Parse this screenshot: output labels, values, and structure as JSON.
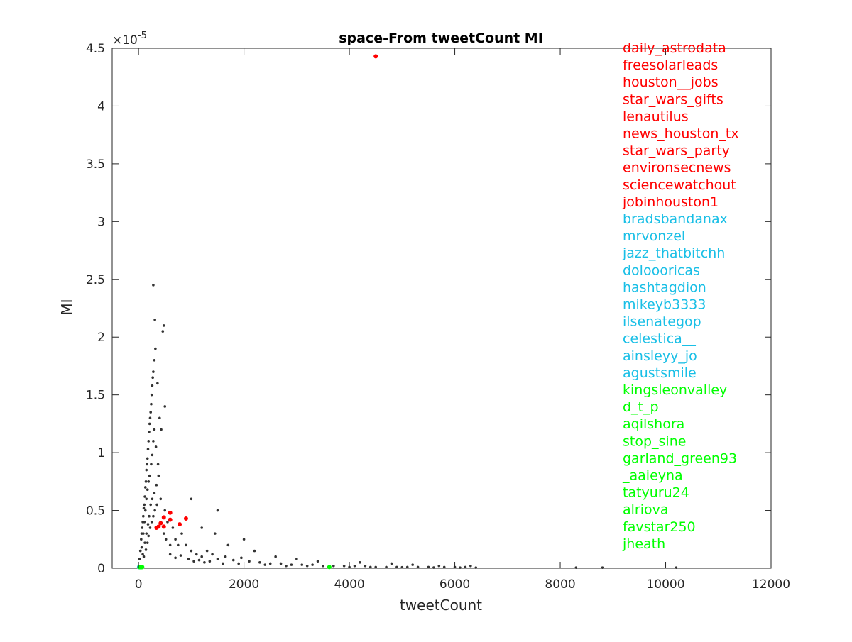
{
  "chart_data": {
    "type": "scatter",
    "title": "space-From tweetCount MI",
    "xlabel": "tweetCount",
    "ylabel": "MI",
    "xlim": [
      -500,
      12000
    ],
    "ylim": [
      0,
      4.5e-05
    ],
    "y_exponent": "×10",
    "y_exponent_power": "-5",
    "x_ticks": [
      0,
      2000,
      4000,
      6000,
      8000,
      10000,
      12000
    ],
    "x_tick_labels": [
      "0",
      "2000",
      "4000",
      "6000",
      "8000",
      "10000",
      "12000"
    ],
    "y_ticks": [
      0,
      5e-06,
      1e-05,
      1.5e-05,
      2e-05,
      2.5e-05,
      3e-05,
      3.5e-05,
      4e-05,
      4.5e-05
    ],
    "y_tick_labels": [
      "0",
      "0.5",
      "1",
      "1.5",
      "2",
      "2.5",
      "3",
      "3.5",
      "4",
      "4.5"
    ],
    "grid": false,
    "legend_placement": "top-right",
    "colors": {
      "red": "#ff0000",
      "blue": "#19bfe6",
      "green": "#00ff00",
      "gray": "#333333"
    },
    "series": [
      {
        "color": "#333333",
        "points": [
          [
            20,
            8e-07
          ],
          [
            35,
            1.5e-06
          ],
          [
            50,
            2.5e-06
          ],
          [
            60,
            3e-06
          ],
          [
            70,
            3.5e-06
          ],
          [
            80,
            4e-06
          ],
          [
            90,
            4.5e-06
          ],
          [
            100,
            5.2e-06
          ],
          [
            110,
            5.5e-06
          ],
          [
            120,
            6.2e-06
          ],
          [
            130,
            7e-06
          ],
          [
            140,
            7.5e-06
          ],
          [
            150,
            8.5e-06
          ],
          [
            160,
            9e-06
          ],
          [
            170,
            9.5e-06
          ],
          [
            180,
            1.03e-05
          ],
          [
            190,
            1.1e-05
          ],
          [
            200,
            1.18e-05
          ],
          [
            210,
            1.25e-05
          ],
          [
            220,
            1.3e-05
          ],
          [
            230,
            1.35e-05
          ],
          [
            240,
            1.42e-05
          ],
          [
            250,
            1.5e-05
          ],
          [
            260,
            1.58e-05
          ],
          [
            270,
            1.65e-05
          ],
          [
            280,
            1.7e-05
          ],
          [
            300,
            1.8e-05
          ],
          [
            320,
            1.9e-05
          ],
          [
            60,
            1.8e-06
          ],
          [
            90,
            3e-06
          ],
          [
            110,
            4e-06
          ],
          [
            130,
            5e-06
          ],
          [
            150,
            6e-06
          ],
          [
            170,
            6.8e-06
          ],
          [
            190,
            7.5e-06
          ],
          [
            210,
            8e-06
          ],
          [
            240,
            9e-06
          ],
          [
            260,
            9.8e-06
          ],
          [
            280,
            1.1e-05
          ],
          [
            300,
            1.2e-05
          ],
          [
            80,
            1.2e-06
          ],
          [
            120,
            2.2e-06
          ],
          [
            150,
            3e-06
          ],
          [
            180,
            3.8e-06
          ],
          [
            200,
            4.5e-06
          ],
          [
            230,
            5.5e-06
          ],
          [
            260,
            6e-06
          ],
          [
            300,
            6.5e-06
          ],
          [
            340,
            7.2e-06
          ],
          [
            380,
            8e-06
          ],
          [
            100,
            1e-06
          ],
          [
            140,
            1.6e-06
          ],
          [
            170,
            2.2e-06
          ],
          [
            190,
            2.8e-06
          ],
          [
            220,
            3.5e-06
          ],
          [
            250,
            4e-06
          ],
          [
            280,
            4.5e-06
          ],
          [
            310,
            5e-06
          ],
          [
            350,
            5.5e-06
          ],
          [
            420,
            6e-06
          ],
          [
            280,
            2.45e-05
          ],
          [
            310,
            2.15e-05
          ],
          [
            360,
            1.6e-05
          ],
          [
            400,
            1.3e-05
          ],
          [
            460,
            2.05e-05
          ],
          [
            480,
            2.1e-05
          ],
          [
            500,
            1.4e-05
          ],
          [
            430,
            1.2e-05
          ],
          [
            330,
            1.05e-05
          ],
          [
            370,
            9e-06
          ],
          [
            500,
            5e-06
          ],
          [
            550,
            4e-06
          ],
          [
            480,
            3e-06
          ],
          [
            520,
            2.5e-06
          ],
          [
            600,
            2e-06
          ],
          [
            650,
            3.5e-06
          ],
          [
            700,
            2.5e-06
          ],
          [
            750,
            2e-06
          ],
          [
            820,
            3e-06
          ],
          [
            900,
            2e-06
          ],
          [
            1000,
            1.5e-06
          ],
          [
            1100,
            1.2e-06
          ],
          [
            1200,
            1e-06
          ],
          [
            1300,
            1.5e-06
          ],
          [
            1400,
            1.2e-06
          ],
          [
            1500,
            8e-07
          ],
          [
            1650,
            1e-06
          ],
          [
            1800,
            7e-07
          ],
          [
            1950,
            9e-07
          ],
          [
            2100,
            6e-07
          ],
          [
            2300,
            5e-07
          ],
          [
            2500,
            4e-07
          ],
          [
            2700,
            4e-07
          ],
          [
            2900,
            3e-07
          ],
          [
            3100,
            3e-07
          ],
          [
            3300,
            3e-07
          ],
          [
            3500,
            2e-07
          ],
          [
            3700,
            2e-07
          ],
          [
            3900,
            2e-07
          ],
          [
            4100,
            2e-07
          ],
          [
            4300,
            2e-07
          ],
          [
            4500,
            1e-07
          ],
          [
            4700,
            1e-07
          ],
          [
            4900,
            1e-07
          ],
          [
            5100,
            1e-07
          ],
          [
            5300,
            1e-07
          ],
          [
            5500,
            1e-07
          ],
          [
            5800,
            1e-07
          ],
          [
            6000,
            1e-07
          ],
          [
            6200,
            1e-07
          ],
          [
            1000,
            6e-06
          ],
          [
            1200,
            3.5e-06
          ],
          [
            1500,
            5e-06
          ],
          [
            1450,
            3e-06
          ],
          [
            1700,
            2e-06
          ],
          [
            2000,
            2.5e-06
          ],
          [
            2200,
            1.5e-06
          ],
          [
            2600,
            1e-06
          ],
          [
            3000,
            8e-07
          ],
          [
            3400,
            6e-07
          ],
          [
            4200,
            5e-07
          ],
          [
            4800,
            4e-07
          ],
          [
            5200,
            3e-07
          ],
          [
            5700,
            2e-07
          ],
          [
            6300,
            2e-07
          ],
          [
            8300,
            5e-08
          ],
          [
            8800,
            5e-08
          ],
          [
            10200,
            5e-08
          ],
          [
            600,
            1.2e-06
          ],
          [
            700,
            9e-07
          ],
          [
            800,
            1.1e-06
          ],
          [
            950,
            8e-07
          ],
          [
            1050,
            6e-07
          ],
          [
            1150,
            7e-07
          ],
          [
            1250,
            5e-07
          ],
          [
            1350,
            6e-07
          ],
          [
            1600,
            4e-07
          ],
          [
            1900,
            4e-07
          ],
          [
            2400,
            3e-07
          ],
          [
            2800,
            2e-07
          ],
          [
            3200,
            2e-07
          ],
          [
            3600,
            1e-07
          ],
          [
            4000,
            1e-07
          ],
          [
            4400,
            1e-07
          ],
          [
            5000,
            8e-08
          ],
          [
            5600,
            6e-08
          ],
          [
            6100,
            5e-08
          ],
          [
            6400,
            5e-08
          ]
        ]
      },
      {
        "color": "#ff0000",
        "points": [
          [
            4500,
            4.43e-05
          ],
          [
            600,
            4.8e-06
          ],
          [
            480,
            4.4e-06
          ],
          [
            900,
            4.3e-06
          ],
          [
            600,
            4.2e-06
          ],
          [
            420,
            3.9e-06
          ],
          [
            780,
            3.8e-06
          ],
          [
            380,
            3.6e-06
          ],
          [
            480,
            3.6e-06
          ],
          [
            340,
            3.5e-06
          ]
        ]
      },
      {
        "color": "#19bfe6",
        "points": [
          [
            10,
            1e-07
          ],
          [
            15,
            1e-07
          ],
          [
            20,
            1e-07
          ],
          [
            25,
            1e-07
          ],
          [
            30,
            1e-07
          ],
          [
            35,
            1e-07
          ],
          [
            40,
            1e-07
          ],
          [
            45,
            1e-07
          ],
          [
            50,
            1e-07
          ],
          [
            55,
            1e-07
          ]
        ]
      },
      {
        "color": "#00ff00",
        "points": [
          [
            3620,
            1e-07
          ],
          [
            20,
            1e-07
          ],
          [
            30,
            1e-07
          ],
          [
            40,
            1e-07
          ],
          [
            50,
            1e-07
          ],
          [
            60,
            1e-07
          ],
          [
            70,
            1e-07
          ],
          [
            25,
            1e-07
          ],
          [
            35,
            1e-07
          ],
          [
            45,
            1e-07
          ]
        ]
      }
    ],
    "labels": [
      {
        "text": "daily_astrodata",
        "color": "#ff0000"
      },
      {
        "text": "freesolarleads",
        "color": "#ff0000"
      },
      {
        "text": "houston__jobs",
        "color": "#ff0000"
      },
      {
        "text": "star_wars_gifts",
        "color": "#ff0000"
      },
      {
        "text": "lenautilus",
        "color": "#ff0000"
      },
      {
        "text": "news_houston_tx",
        "color": "#ff0000"
      },
      {
        "text": "star_wars_party",
        "color": "#ff0000"
      },
      {
        "text": "environsecnews",
        "color": "#ff0000"
      },
      {
        "text": "sciencewatchout",
        "color": "#ff0000"
      },
      {
        "text": "jobinhouston1",
        "color": "#ff0000"
      },
      {
        "text": "bradsbandanax",
        "color": "#19bfe6"
      },
      {
        "text": "mrvonzel",
        "color": "#19bfe6"
      },
      {
        "text": "jazz_thatbitchh",
        "color": "#19bfe6"
      },
      {
        "text": "doloooricas",
        "color": "#19bfe6"
      },
      {
        "text": "hashtagdion",
        "color": "#19bfe6"
      },
      {
        "text": "mikeyb3333",
        "color": "#19bfe6"
      },
      {
        "text": "ilsenategop",
        "color": "#19bfe6"
      },
      {
        "text": "celestica__",
        "color": "#19bfe6"
      },
      {
        "text": "ainsleyy_jo",
        "color": "#19bfe6"
      },
      {
        "text": "agustsmile",
        "color": "#19bfe6"
      },
      {
        "text": "kingsleonvalley",
        "color": "#00ff00"
      },
      {
        "text": "d_t_p",
        "color": "#00ff00"
      },
      {
        "text": "aqilshora",
        "color": "#00ff00"
      },
      {
        "text": "stop_sine",
        "color": "#00ff00"
      },
      {
        "text": "garland_green93",
        "color": "#00ff00"
      },
      {
        "text": "_aaieyna",
        "color": "#00ff00"
      },
      {
        "text": "tatyuru24",
        "color": "#00ff00"
      },
      {
        "text": "alriova",
        "color": "#00ff00"
      },
      {
        "text": "favstar250",
        "color": "#00ff00"
      },
      {
        "text": "jheath",
        "color": "#00ff00"
      }
    ]
  }
}
